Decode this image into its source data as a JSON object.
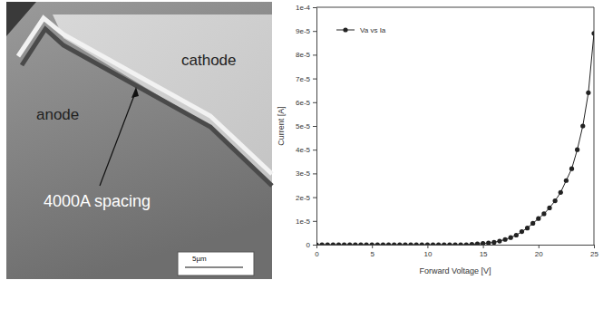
{
  "image_annotations": {
    "cathode": "cathode",
    "anode": "anode",
    "spacing": "4000A spacing",
    "scale_bar": "5µm"
  },
  "chart_data": {
    "type": "line",
    "x_label": "Forward Voltage [V]",
    "y_label": "Current [A]",
    "legend": "upper left",
    "xlim": [
      0,
      25
    ],
    "xticks": [
      0,
      5,
      10,
      15,
      20,
      25
    ],
    "ylim": [
      0,
      0.0001
    ],
    "yticks": [
      0,
      {
        "value": 1e-05,
        "label": "1e-5"
      },
      {
        "value": 2e-05,
        "label": "2e-5"
      },
      {
        "value": 3e-05,
        "label": "3e-5"
      },
      {
        "value": 4e-05,
        "label": "4e-5"
      },
      {
        "value": 5e-05,
        "label": "5e-5"
      },
      {
        "value": 6e-05,
        "label": "6e-5"
      },
      {
        "value": 7e-05,
        "label": "7e-5"
      },
      {
        "value": 8e-05,
        "label": "8e-5"
      },
      {
        "value": 9e-05,
        "label": "9e-5"
      },
      {
        "value": 0.0001,
        "label": "1e-4"
      }
    ],
    "x": [
      0,
      0.5,
      1,
      1.5,
      2,
      2.5,
      3,
      3.5,
      4,
      4.5,
      5,
      5.5,
      6,
      6.5,
      7,
      7.5,
      8,
      8.5,
      9,
      9.5,
      10,
      10.5,
      11,
      11.5,
      12,
      12.5,
      13,
      13.5,
      14,
      14.5,
      15,
      15.5,
      16,
      16.5,
      17,
      17.5,
      18,
      18.5,
      19,
      19.5,
      20,
      20.5,
      21,
      21.5,
      22,
      22.5,
      23,
      23.5,
      24,
      24.5,
      25
    ],
    "series": [
      {
        "name": "Va vs Ia",
        "color": "#222222",
        "marker": "circle",
        "line_style": "solid",
        "values": [
          0,
          0,
          0,
          0,
          0,
          0,
          0,
          0,
          0,
          0,
          0,
          0,
          0,
          0,
          0,
          0,
          0,
          0,
          0,
          0,
          0,
          0,
          0,
          0,
          0,
          0,
          0,
          0,
          2e-07,
          3e-07,
          5e-07,
          7e-07,
          1e-06,
          1.5e-06,
          2.2e-06,
          3e-06,
          4e-06,
          5.5e-06,
          7e-06,
          9e-06,
          1.1e-05,
          1.3e-05,
          1.55e-05,
          1.85e-05,
          2.2e-05,
          2.7e-05,
          3.2e-05,
          4e-05,
          5e-05,
          6.4e-05,
          8.9e-05
        ]
      }
    ]
  }
}
